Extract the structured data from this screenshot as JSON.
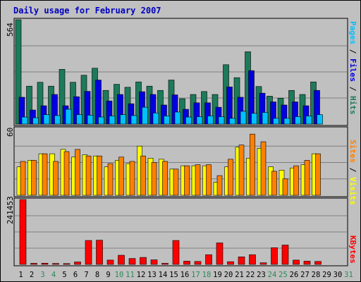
{
  "title": "Daily usage for February 2007",
  "colors": {
    "background": "#c0c0c0",
    "hits": "#1d7a5a",
    "files": "#0000e0",
    "pages": "#00c0ff",
    "visits": "#ffff00",
    "sites": "#ff8000",
    "kbytes": "#ff0000",
    "title": "#0000c0",
    "weekend_day": "#2a8a58",
    "gridline": "#7f7f7f"
  },
  "chart_data": [
    {
      "type": "bar",
      "name": "top",
      "ymax_label": "564",
      "ylim": [
        0,
        564
      ],
      "grid": true,
      "side_labels": [
        {
          "text": "Pages",
          "color": "#00c0ff"
        },
        {
          "text": " / ",
          "color": "#000000"
        },
        {
          "text": "Files",
          "color": "#0000e0"
        },
        {
          "text": " / ",
          "color": "#000000"
        },
        {
          "text": "Hits",
          "color": "#1d7a5a"
        }
      ],
      "categories": [
        "1",
        "2",
        "3",
        "4",
        "5",
        "6",
        "7",
        "8",
        "9",
        "10",
        "11",
        "12",
        "13",
        "14",
        "15",
        "16",
        "17",
        "18",
        "19",
        "20",
        "21",
        "22",
        "23",
        "24",
        "25",
        "26",
        "27",
        "28",
        "29",
        "30",
        "31"
      ],
      "series": [
        {
          "name": "Hits",
          "color": "#1d7a5a",
          "values": [
            564,
            205,
            226,
            205,
            296,
            226,
            264,
            302,
            182,
            215,
            199,
            228,
            205,
            182,
            238,
            137,
            160,
            176,
            160,
            321,
            251,
            391,
            203,
            151,
            140,
            182,
            160,
            228,
            null,
            null,
            null
          ]
        },
        {
          "name": "Files",
          "color": "#0000e0",
          "values": [
            145,
            76,
            99,
            160,
            99,
            148,
            177,
            238,
            125,
            160,
            110,
            175,
            160,
            103,
            158,
            80,
            115,
            115,
            91,
            201,
            145,
            289,
            167,
            120,
            103,
            120,
            99,
            182,
            null,
            null,
            null
          ]
        },
        {
          "name": "Pages",
          "color": "#00c0ff",
          "values": [
            38,
            34,
            51,
            46,
            80,
            51,
            48,
            38,
            44,
            51,
            46,
            91,
            60,
            44,
            65,
            38,
            40,
            44,
            40,
            31,
            69,
            58,
            63,
            31,
            31,
            40,
            44,
            51,
            null,
            null,
            null
          ]
        }
      ]
    },
    {
      "type": "bar",
      "name": "middle",
      "ymax_label": "60",
      "ylim": [
        0,
        60
      ],
      "grid": true,
      "side_labels": [
        {
          "text": "Sites",
          "color": "#ff8000"
        },
        {
          "text": " / ",
          "color": "#000000"
        },
        {
          "text": "Visits",
          "color": "#ffff00"
        }
      ],
      "categories": [
        "1",
        "2",
        "3",
        "4",
        "5",
        "6",
        "7",
        "8",
        "9",
        "10",
        "11",
        "12",
        "13",
        "14",
        "15",
        "16",
        "17",
        "18",
        "19",
        "20",
        "21",
        "22",
        "23",
        "24",
        "25",
        "26",
        "27",
        "28",
        "29",
        "30",
        "31"
      ],
      "series": [
        {
          "name": "Visits",
          "color": "#ffff00",
          "values": [
            26,
            32,
            38,
            38,
            42,
            35,
            37,
            36,
            26,
            32,
            29,
            45,
            34,
            33,
            24,
            27,
            27,
            27,
            12,
            26,
            44,
            34,
            43,
            26,
            23,
            25,
            28,
            38,
            null,
            null,
            null
          ]
        },
        {
          "name": "Sites",
          "color": "#ff8000",
          "values": [
            31,
            32,
            38,
            31,
            40,
            42,
            36,
            36,
            29,
            35,
            31,
            36,
            30,
            31,
            24,
            27,
            28,
            28,
            18,
            33,
            46,
            56,
            49,
            22,
            15,
            27,
            32,
            38,
            null,
            null,
            null
          ]
        }
      ]
    },
    {
      "type": "bar",
      "name": "bottom",
      "ymax_label": "241453",
      "ylim": [
        0,
        241453
      ],
      "grid": true,
      "side_labels": [
        {
          "text": "KBytes",
          "color": "#ff0000"
        }
      ],
      "categories": [
        "1",
        "2",
        "3",
        "4",
        "5",
        "6",
        "7",
        "8",
        "9",
        "10",
        "11",
        "12",
        "13",
        "14",
        "15",
        "16",
        "17",
        "18",
        "19",
        "20",
        "21",
        "22",
        "23",
        "24",
        "25",
        "26",
        "27",
        "28",
        "29",
        "30",
        "31"
      ],
      "series": [
        {
          "name": "KBytes",
          "color": "#ff0000",
          "values": [
            241453,
            4000,
            4500,
            3500,
            3000,
            9000,
            89000,
            90000,
            16000,
            34000,
            22000,
            26000,
            17000,
            4000,
            89000,
            12000,
            11000,
            36000,
            80000,
            10000,
            28000,
            36000,
            6000,
            62000,
            72000,
            16000,
            12000,
            11000,
            null,
            null,
            null
          ]
        }
      ]
    }
  ],
  "x_axis": {
    "labels": [
      "1",
      "2",
      "3",
      "4",
      "5",
      "6",
      "7",
      "8",
      "9",
      "10",
      "11",
      "12",
      "13",
      "14",
      "15",
      "16",
      "17",
      "18",
      "19",
      "20",
      "21",
      "22",
      "23",
      "24",
      "25",
      "26",
      "27",
      "28",
      "29",
      "30",
      "31"
    ],
    "weekend": [
      3,
      4,
      10,
      11,
      17,
      18,
      24,
      25,
      31
    ]
  }
}
